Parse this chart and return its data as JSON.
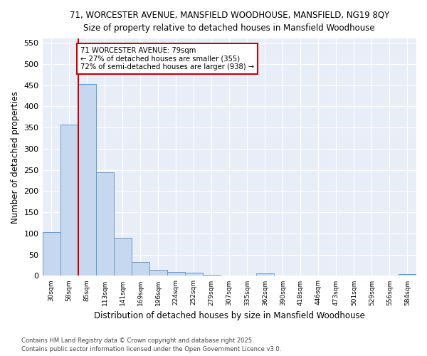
{
  "title_line1": "71, WORCESTER AVENUE, MANSFIELD WOODHOUSE, MANSFIELD, NG19 8QY",
  "title_line2": "Size of property relative to detached houses in Mansfield Woodhouse",
  "xlabel": "Distribution of detached houses by size in Mansfield Woodhouse",
  "ylabel": "Number of detached properties",
  "bin_labels": [
    "30sqm",
    "58sqm",
    "85sqm",
    "113sqm",
    "141sqm",
    "169sqm",
    "196sqm",
    "224sqm",
    "252sqm",
    "279sqm",
    "307sqm",
    "335sqm",
    "362sqm",
    "390sqm",
    "418sqm",
    "446sqm",
    "473sqm",
    "501sqm",
    "529sqm",
    "556sqm",
    "584sqm"
  ],
  "bar_heights": [
    103,
    357,
    452,
    245,
    90,
    32,
    15,
    9,
    8,
    3,
    0,
    0,
    5,
    0,
    0,
    0,
    0,
    0,
    0,
    0,
    4
  ],
  "bar_color": "#c5d8f0",
  "bar_edge_color": "#6699cc",
  "vline_x_idx": 2,
  "vline_color": "#cc0000",
  "annotation_line1": "71 WORCESTER AVENUE: 79sqm",
  "annotation_line2": "← 27% of detached houses are smaller (355)",
  "annotation_line3": "72% of semi-detached houses are larger (938) →",
  "annotation_box_facecolor": "#ffffff",
  "annotation_box_edgecolor": "#cc0000",
  "ylim_max": 560,
  "yticks": [
    0,
    50,
    100,
    150,
    200,
    250,
    300,
    350,
    400,
    450,
    500,
    550
  ],
  "footer_line1": "Contains HM Land Registry data © Crown copyright and database right 2025.",
  "footer_line2": "Contains public sector information licensed under the Open Government Licence v3.0.",
  "plot_bg_color": "#e8eef8",
  "fig_bg_color": "#ffffff",
  "grid_color": "#ffffff"
}
